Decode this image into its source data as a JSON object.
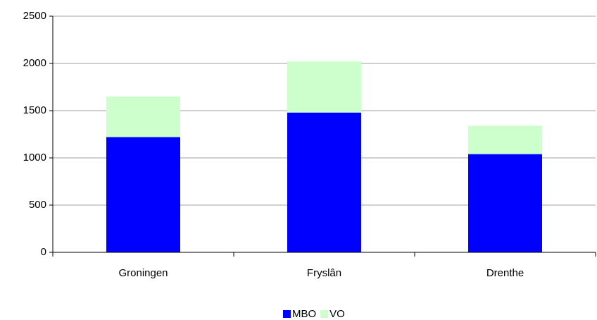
{
  "chart_data": {
    "type": "stacked_bar",
    "categories": [
      "Groningen",
      "Fryslân",
      "Drenthe"
    ],
    "series": [
      {
        "name": "MBO",
        "color": "#0000ff",
        "values": [
          1220,
          1480,
          1040
        ]
      },
      {
        "name": "VO",
        "color": "#ccffcc",
        "values": [
          430,
          540,
          300
        ]
      }
    ],
    "ylim": [
      0,
      2500
    ],
    "yticks": [
      0,
      500,
      1000,
      1500,
      2000,
      2500
    ],
    "grid": true,
    "legend": "bottom"
  }
}
